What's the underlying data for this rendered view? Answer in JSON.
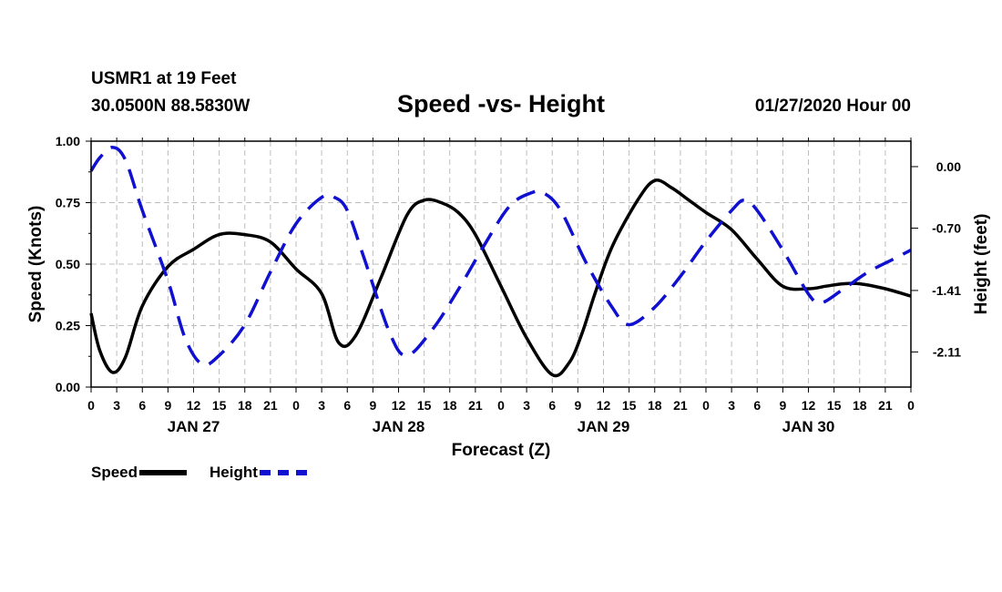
{
  "header": {
    "station": "USMR1 at 19 Feet",
    "coords": "30.0500N 88.5830W",
    "title": "Speed -vs- Height",
    "date": "01/27/2020 Hour 00"
  },
  "legend": {
    "speed": "Speed",
    "height": "Height"
  },
  "colors": {
    "speed": "#000000",
    "height": "#1010d0",
    "grid": "#bdbdbd"
  },
  "chart_data": {
    "type": "line",
    "title": "Speed -vs- Height",
    "xlabel": "Forecast (Z)",
    "ylabel": "Speed (Knots)",
    "y2label": "Height (feet)",
    "xlim": [
      0,
      96
    ],
    "ylim": [
      0,
      1.0
    ],
    "y2lim": [
      -2.51,
      0.29
    ],
    "x_tick_step": 3,
    "x_tick_labels": [
      "0",
      "3",
      "6",
      "9",
      "12",
      "15",
      "18",
      "21",
      "0",
      "3",
      "6",
      "9",
      "12",
      "15",
      "18",
      "21",
      "0",
      "3",
      "6",
      "9",
      "12",
      "15",
      "18",
      "21",
      "0",
      "3",
      "6",
      "9",
      "12",
      "15",
      "18",
      "21",
      "0"
    ],
    "day_labels": [
      {
        "x": 12,
        "label": "JAN 27"
      },
      {
        "x": 36,
        "label": "JAN 28"
      },
      {
        "x": 60,
        "label": "JAN 29"
      },
      {
        "x": 84,
        "label": "JAN 30"
      }
    ],
    "y_ticks": [
      "0.00",
      "0.25",
      "0.50",
      "0.75",
      "1.00"
    ],
    "y2_ticks": [
      "0.00",
      "-0.70",
      "-1.41",
      "-2.11"
    ],
    "series": [
      {
        "name": "Speed",
        "axis": "left",
        "style": "solid",
        "x": [
          0,
          1,
          2.5,
          4,
          6,
          9,
          12,
          15,
          18,
          21,
          24,
          27,
          29,
          31,
          34,
          37,
          39,
          41,
          43,
          45,
          48,
          51,
          54,
          56,
          57.5,
          59,
          61,
          64,
          66,
          68,
          70,
          72,
          75,
          78,
          81,
          84,
          86,
          88,
          90,
          93,
          96
        ],
        "y": [
          0.3,
          0.15,
          0.06,
          0.12,
          0.33,
          0.49,
          0.56,
          0.62,
          0.62,
          0.59,
          0.48,
          0.38,
          0.18,
          0.21,
          0.45,
          0.7,
          0.76,
          0.75,
          0.71,
          0.62,
          0.41,
          0.2,
          0.05,
          0.1,
          0.22,
          0.38,
          0.57,
          0.76,
          0.84,
          0.81,
          0.76,
          0.71,
          0.64,
          0.52,
          0.41,
          0.4,
          0.41,
          0.42,
          0.42,
          0.4,
          0.37
        ]
      },
      {
        "name": "Height",
        "axis": "right",
        "style": "dashed",
        "x": [
          0,
          1,
          2.5,
          4,
          6,
          9,
          11,
          13,
          15,
          18,
          21,
          24,
          27,
          28.5,
          30,
          32,
          35,
          37,
          40,
          43,
          46,
          49,
          51.5,
          53,
          55,
          58,
          61,
          63,
          66,
          69,
          72,
          75,
          76.5,
          78,
          81,
          84,
          85.5,
          88,
          91,
          94,
          96
        ],
        "y": [
          -0.05,
          0.1,
          0.22,
          0.08,
          -0.5,
          -1.3,
          -1.95,
          -2.25,
          -2.15,
          -1.8,
          -1.2,
          -0.65,
          -0.35,
          -0.35,
          -0.5,
          -1.05,
          -1.9,
          -2.15,
          -1.85,
          -1.4,
          -0.9,
          -0.45,
          -0.3,
          -0.3,
          -0.5,
          -1.1,
          -1.6,
          -1.8,
          -1.6,
          -1.25,
          -0.85,
          -0.5,
          -0.38,
          -0.5,
          -0.95,
          -1.45,
          -1.55,
          -1.4,
          -1.2,
          -1.05,
          -0.95
        ]
      }
    ]
  }
}
